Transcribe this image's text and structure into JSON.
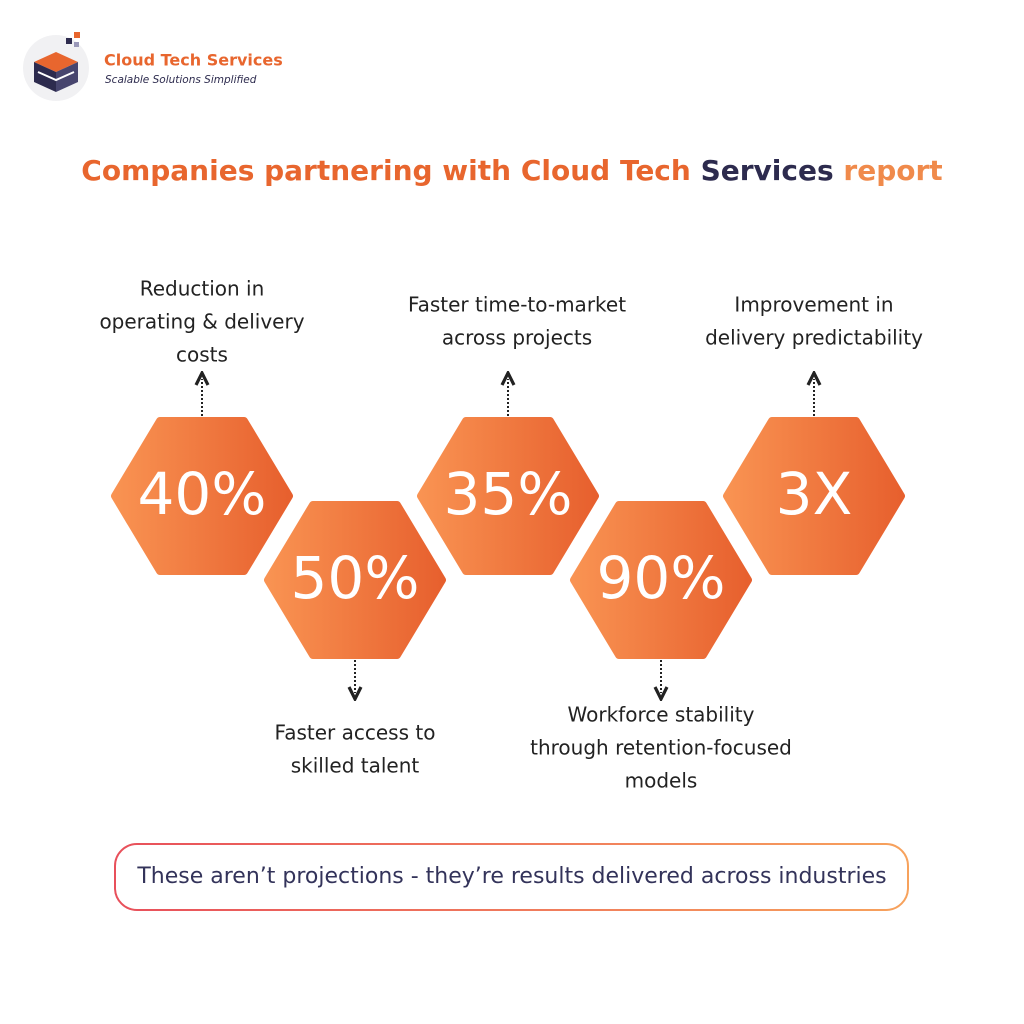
{
  "brand": {
    "name": "Cloud Tech Services",
    "tagline": "Scalable Solutions Simplified"
  },
  "title": {
    "parts": [
      "Companies partnering with Cloud Tech",
      "Services",
      "report"
    ]
  },
  "stats": [
    {
      "value": "40%",
      "label": [
        "Reduction in",
        "operating & delivery",
        "costs"
      ]
    },
    {
      "value": "50%",
      "label": [
        "Faster access to",
        "skilled talent"
      ]
    },
    {
      "value": "35%",
      "label": [
        "Faster time-to-market",
        "across projects"
      ]
    },
    {
      "value": "90%",
      "label": [
        "Workforce stability",
        "through retention-focused",
        "models"
      ]
    },
    {
      "value": "3X",
      "label": [
        "Improvement in",
        "delivery predictability"
      ]
    }
  ],
  "footer": "These aren’t projections - they’re results delivered across industries"
}
